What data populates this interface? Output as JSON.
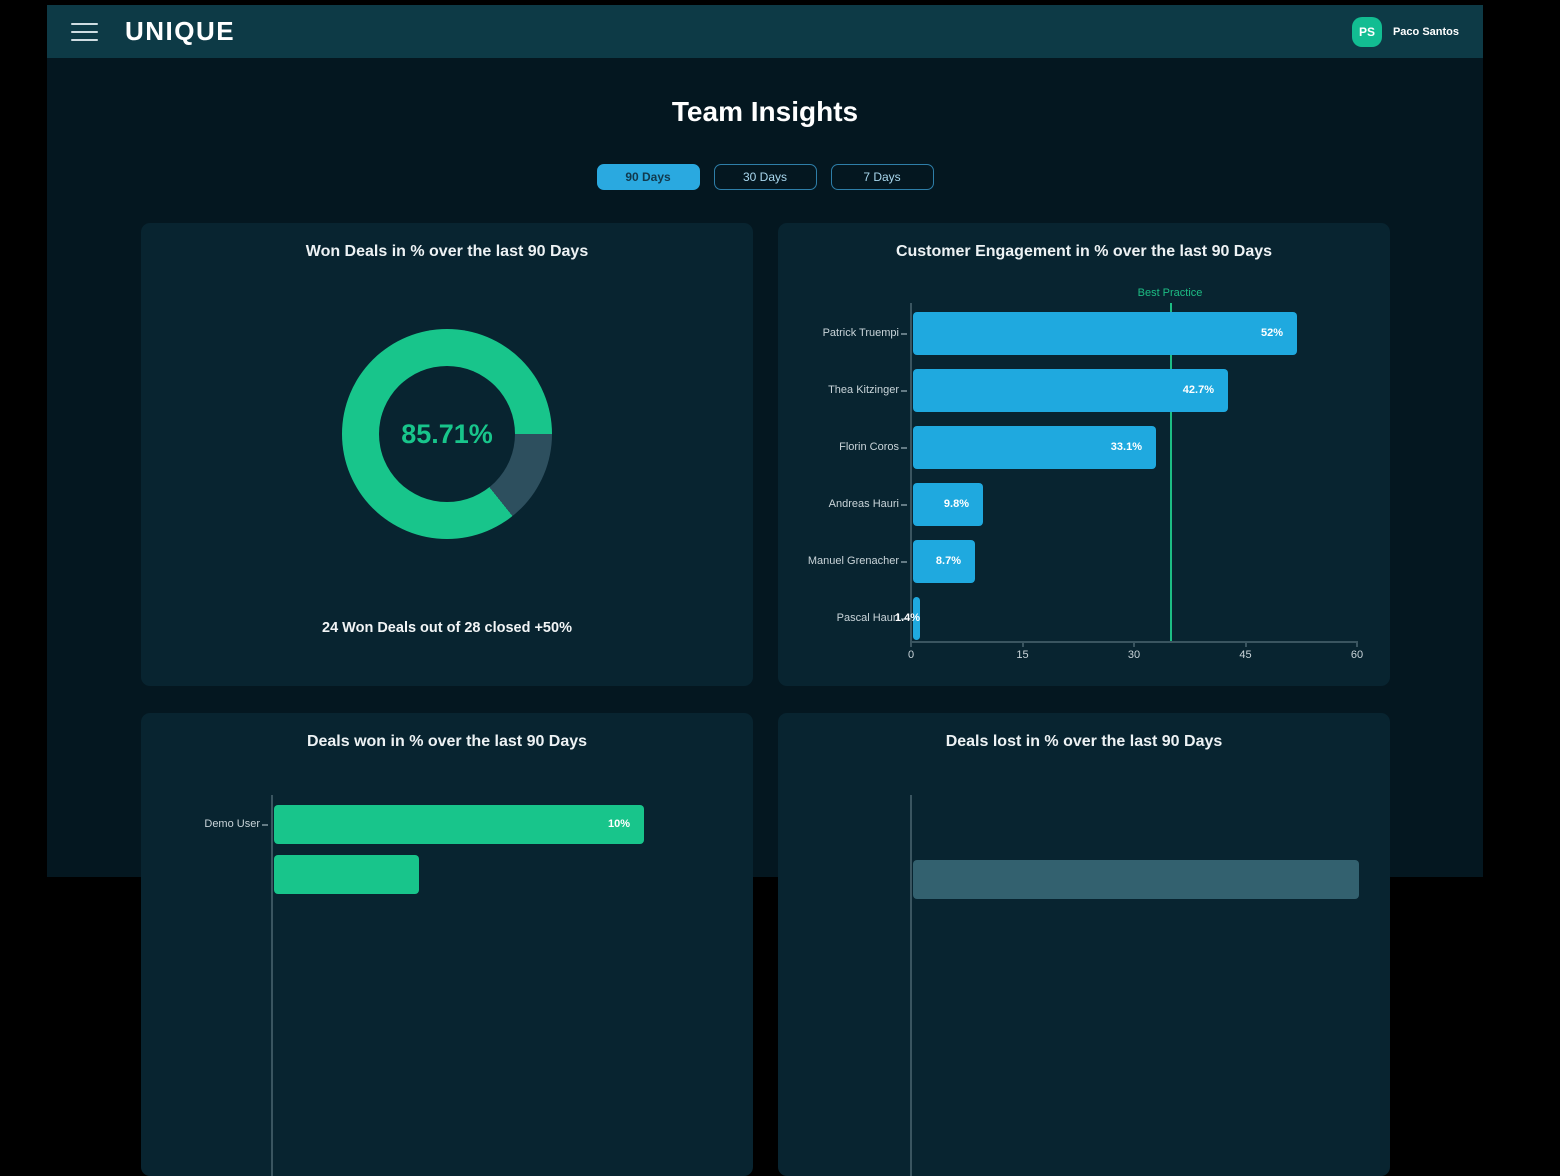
{
  "navbar": {
    "brand": "UNIQUE",
    "menu_icon": "hamburger-icon",
    "user": {
      "initials": "PS",
      "name": "Paco Santos"
    }
  },
  "page": {
    "title": "Team Insights"
  },
  "tabs": [
    {
      "label": "90 Days",
      "active": true
    },
    {
      "label": "30 Days",
      "active": false
    },
    {
      "label": "7 Days",
      "active": false
    }
  ],
  "colors": {
    "navbar_bg": "#0d3a46",
    "page_bg": "#041720",
    "card_bg": "#082430",
    "accent_green": "#18c58b",
    "donut_remainder": "#2d4f5e",
    "accent_blue": "#1fa9df",
    "best_practice_green": "#1dbd84",
    "lost_bar_slate": "#33616f",
    "avatar_green": "#12bd92",
    "active_tab_blue": "#2aa9e0"
  },
  "chart_data": [
    {
      "type": "donut",
      "title": "Won Deals in % over the last 90 Days",
      "value": 85.71,
      "center_label": "85.71%",
      "caption": "24 Won Deals out of 28 closed +50%",
      "colors": {
        "won": "#18c58b",
        "remainder": "#2d4f5e"
      }
    },
    {
      "type": "bar",
      "orientation": "horizontal",
      "title": "Customer Engagement in % over the last 90 Days",
      "categories": [
        "Patrick Truempi",
        "Thea Kitzinger",
        "Florin Coros",
        "Andreas Hauri",
        "Manuel Grenacher",
        "Pascal Hauri"
      ],
      "values": [
        52,
        42.7,
        33.1,
        9.8,
        8.7,
        1.4
      ],
      "value_labels": [
        "52%",
        "42.7%",
        "33.1%",
        "9.8%",
        "8.7%",
        "1.4%"
      ],
      "fractions": [
        0.867,
        0.712,
        0.552,
        0.163,
        0.145,
        0.023
      ],
      "xlim": [
        0,
        60
      ],
      "xticks": [
        0,
        15,
        30,
        45,
        60
      ],
      "bar_color": "#1fa9df",
      "reference_line": {
        "label": "Best Practice",
        "value": 35,
        "fraction": 0.583,
        "color": "#1dbd84"
      }
    },
    {
      "type": "bar",
      "orientation": "horizontal",
      "title": "Deals won in % over the last 90 Days",
      "title_parts": [
        "Deals ",
        "won",
        " in % over the last 90 Days"
      ],
      "categories": [
        "Demo User",
        ""
      ],
      "values": [
        10,
        4
      ],
      "value_labels": [
        "10%",
        ""
      ],
      "fractions": [
        0.83,
        0.33
      ],
      "bar_color": "#18c58b",
      "partial": "second bar cut off by viewport bottom"
    },
    {
      "type": "bar",
      "orientation": "horizontal",
      "title": "Deals lost in % over the last 90 Days",
      "title_parts": [
        "Deals ",
        "lost",
        " in % over the last 90 Days"
      ],
      "categories": [
        ""
      ],
      "values": [
        null
      ],
      "value_labels": [
        ""
      ],
      "fractions": [
        1.0
      ],
      "bar_color": "#33616f",
      "partial": "bar cut off by viewport bottom"
    }
  ]
}
